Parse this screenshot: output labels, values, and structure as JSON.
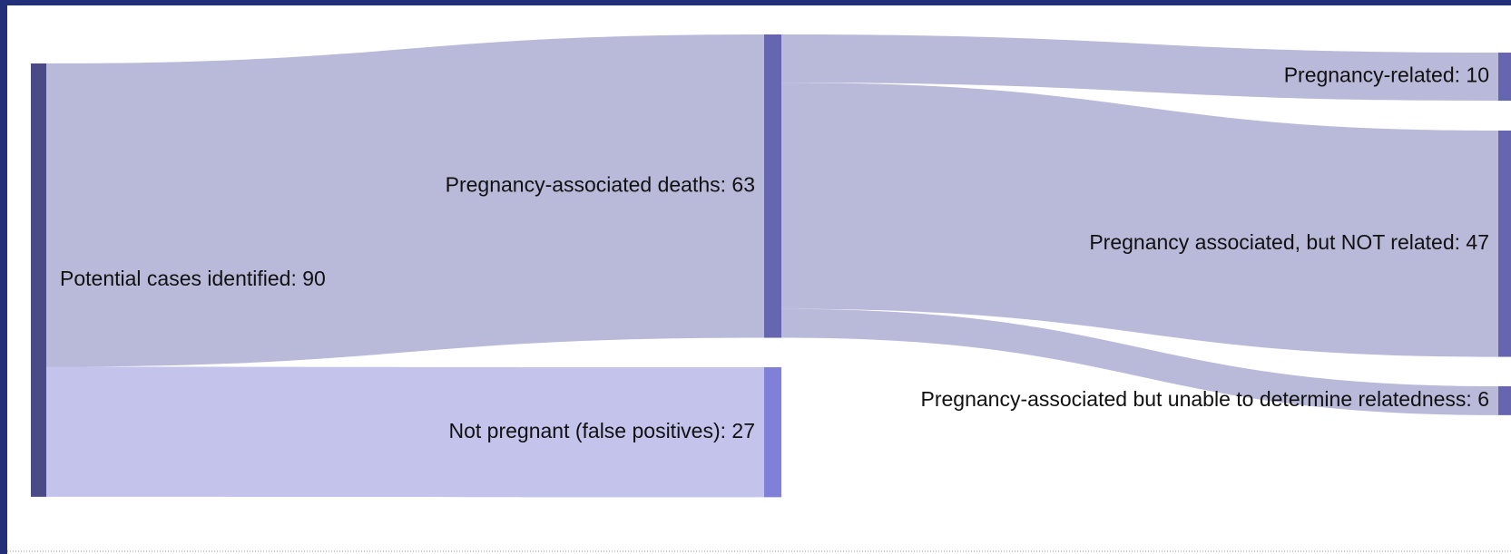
{
  "chart_data": {
    "type": "sankey",
    "nodes": [
      {
        "label": "Potential cases identified: 90",
        "value": 90
      },
      {
        "label": "Pregnancy-associated deaths: 63",
        "value": 63
      },
      {
        "label": "Not pregnant (false positives): 27",
        "value": 27
      },
      {
        "label": "Pregnancy-related: 10",
        "value": 10
      },
      {
        "label": "Pregnancy associated, but NOT related: 47",
        "value": 47
      },
      {
        "label": "Pregnancy-associated but unable to determine relatedness: 6",
        "value": 6
      }
    ],
    "links": [
      {
        "source": 0,
        "target": 1,
        "value": 63
      },
      {
        "source": 0,
        "target": 2,
        "value": 27
      },
      {
        "source": 1,
        "target": 3,
        "value": 10
      },
      {
        "source": 1,
        "target": 4,
        "value": 47
      },
      {
        "source": 1,
        "target": 5,
        "value": 6
      }
    ],
    "node_colors": [
      "#4a4a86",
      "#6666b0",
      "#8080d8",
      "#6666b0",
      "#6666b0",
      "#6666b0"
    ],
    "link_colors": [
      "#b9b9da",
      "#c3c3ec",
      "#b9b9da",
      "#b9b9da",
      "#b9b9da"
    ]
  }
}
